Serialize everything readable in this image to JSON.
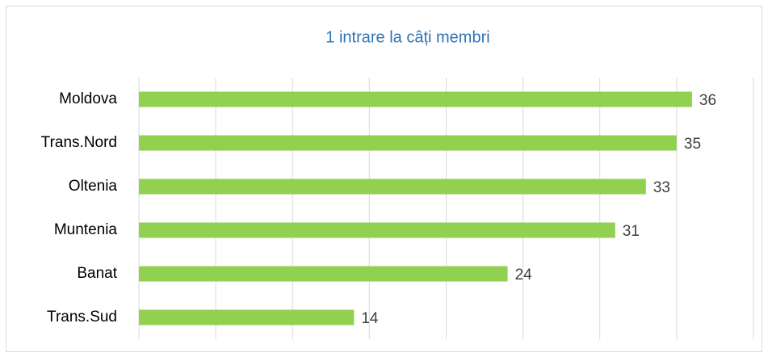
{
  "chart_data": {
    "type": "bar",
    "orientation": "horizontal",
    "title": "1 intrare la câți membri",
    "categories": [
      "Moldova",
      "Trans.Nord",
      "Oltenia",
      "Muntenia",
      "Banat",
      "Trans.Sud"
    ],
    "values": [
      36,
      35,
      33,
      31,
      24,
      14
    ],
    "color": "#92d050",
    "xlim": [
      0,
      40
    ],
    "xticks": [
      0,
      5,
      10,
      15,
      20,
      25,
      30,
      35,
      40
    ],
    "grid": true
  }
}
